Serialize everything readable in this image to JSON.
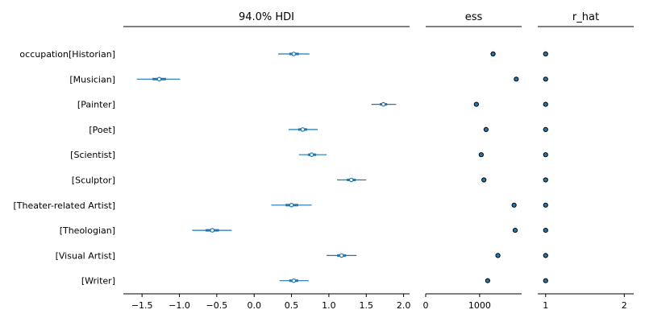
{
  "chart_data": {
    "type": "forest",
    "panels": [
      {
        "id": "hdi",
        "title": "94.0% HDI",
        "xlim": [
          -1.75,
          2.08
        ],
        "ticks": [
          -1.5,
          -1.0,
          -0.5,
          0.0,
          0.5,
          1.0,
          1.5,
          2.0
        ],
        "tick_labels": [
          "−1.5",
          "−1.0",
          "−0.5",
          "0.0",
          "0.5",
          "1.0",
          "1.5",
          "2.0"
        ]
      },
      {
        "id": "ess",
        "title": "ess",
        "xlim": [
          0,
          1780
        ],
        "ticks": [
          0,
          1000
        ],
        "tick_labels": [
          "0",
          "1000"
        ]
      },
      {
        "id": "rhat",
        "title": "r_hat",
        "xlim": [
          0.9,
          2.12
        ],
        "ticks": [
          1,
          2
        ],
        "tick_labels": [
          "1",
          "2"
        ]
      }
    ],
    "categories": [
      "occupation[Historian]",
      "[Musician]",
      "[Painter]",
      "[Poet]",
      "[Scientist]",
      "[Sculptor]",
      "[Theater-related Artist]",
      "[Theologian]",
      "[Visual Artist]",
      "[Writer]"
    ],
    "hdi": [
      {
        "mean": 0.53,
        "hdi_low": 0.32,
        "hdi_high": 0.74,
        "iqr_low": 0.47,
        "iqr_high": 0.6
      },
      {
        "mean": -1.27,
        "hdi_low": -1.57,
        "hdi_high": -0.99,
        "iqr_low": -1.36,
        "iqr_high": -1.18
      },
      {
        "mean": 1.73,
        "hdi_low": 1.57,
        "hdi_high": 1.9,
        "iqr_low": 1.68,
        "iqr_high": 1.78
      },
      {
        "mean": 0.65,
        "hdi_low": 0.46,
        "hdi_high": 0.85,
        "iqr_low": 0.59,
        "iqr_high": 0.71
      },
      {
        "mean": 0.77,
        "hdi_low": 0.6,
        "hdi_high": 0.97,
        "iqr_low": 0.72,
        "iqr_high": 0.83
      },
      {
        "mean": 1.3,
        "hdi_low": 1.11,
        "hdi_high": 1.5,
        "iqr_low": 1.24,
        "iqr_high": 1.36
      },
      {
        "mean": 0.5,
        "hdi_low": 0.23,
        "hdi_high": 0.77,
        "iqr_low": 0.42,
        "iqr_high": 0.59
      },
      {
        "mean": -0.56,
        "hdi_low": -0.83,
        "hdi_high": -0.3,
        "iqr_low": -0.65,
        "iqr_high": -0.47
      },
      {
        "mean": 1.17,
        "hdi_low": 0.97,
        "hdi_high": 1.37,
        "iqr_low": 1.11,
        "iqr_high": 1.23
      },
      {
        "mean": 0.53,
        "hdi_low": 0.34,
        "hdi_high": 0.73,
        "iqr_low": 0.47,
        "iqr_high": 0.59
      }
    ],
    "ess": [
      1250,
      1680,
      940,
      1120,
      1030,
      1080,
      1640,
      1660,
      1340,
      1150
    ],
    "r_hat": [
      1.0,
      1.0,
      1.0,
      1.0,
      1.0,
      1.0,
      1.0,
      1.0,
      1.0,
      1.0
    ],
    "grid": false,
    "colors": {
      "line": "#1f77b4",
      "marker_face_hdi": "#ffffff",
      "marker_face_stats": "#1f77b4",
      "marker_edge": "#000000",
      "axis": "#000000",
      "text": "#000000"
    }
  }
}
